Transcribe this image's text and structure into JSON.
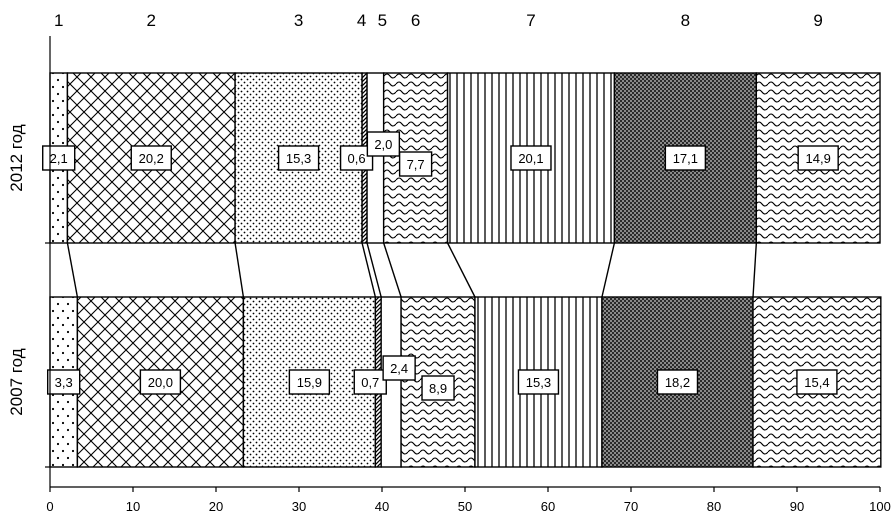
{
  "chart_data": {
    "type": "bar",
    "orientation": "horizontal",
    "stacked": true,
    "percent": true,
    "segment_numbers": [
      "1",
      "2",
      "3",
      "4",
      "5",
      "6",
      "7",
      "8",
      "9"
    ],
    "categories": [
      "2012 год",
      "2007 год"
    ],
    "series": [
      {
        "values": [
          2.1,
          3.3
        ],
        "labels": [
          "2,1",
          "3,3"
        ],
        "pattern": "dots-sparse"
      },
      {
        "values": [
          20.2,
          20.0
        ],
        "labels": [
          "20,2",
          "20,0"
        ],
        "pattern": "crosshatch"
      },
      {
        "values": [
          15.3,
          15.9
        ],
        "labels": [
          "15,3",
          "15,9"
        ],
        "pattern": "dots-dense"
      },
      {
        "values": [
          0.6,
          0.7
        ],
        "labels": [
          "0,6",
          "0,7"
        ],
        "pattern": "diagonal"
      },
      {
        "values": [
          2.0,
          2.4
        ],
        "labels": [
          "2,0",
          "2,4"
        ],
        "pattern": "white"
      },
      {
        "values": [
          7.7,
          8.9
        ],
        "labels": [
          "7,7",
          "8,9"
        ],
        "pattern": "waves"
      },
      {
        "values": [
          20.1,
          15.3
        ],
        "labels": [
          "20,1",
          "15,3"
        ],
        "pattern": "vertical-lines"
      },
      {
        "values": [
          17.1,
          18.2
        ],
        "labels": [
          "17,1",
          "18,2"
        ],
        "pattern": "checker-dark"
      },
      {
        "values": [
          14.9,
          15.4
        ],
        "labels": [
          "14,9",
          "15,4"
        ],
        "pattern": "waves"
      }
    ],
    "xlim": [
      0,
      100
    ],
    "xticks": [
      "0",
      "10",
      "20",
      "30",
      "40",
      "50",
      "60",
      "70",
      "80",
      "90",
      "100"
    ],
    "grid": false,
    "legend": "none"
  }
}
